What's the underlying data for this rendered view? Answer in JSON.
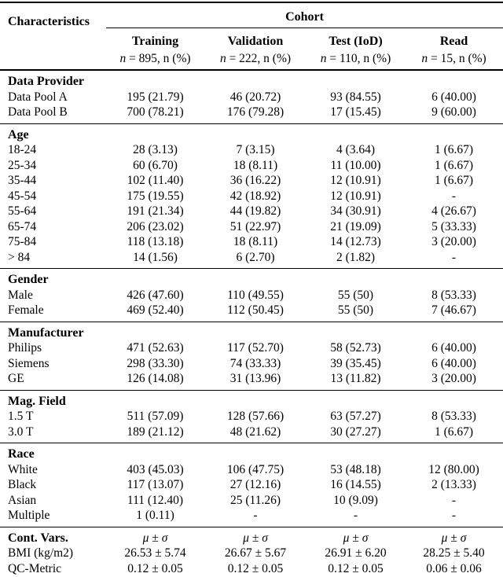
{
  "table": {
    "col1_header": "Characteristics",
    "cohort_header": "Cohort",
    "columns": [
      {
        "label": "Training",
        "n_prefix": "n",
        "n_rest": " = 895, n (%)"
      },
      {
        "label": "Validation",
        "n_prefix": "n",
        "n_rest": " = 222, n (%)"
      },
      {
        "label": "Test (IoD)",
        "n_prefix": "n",
        "n_rest": " = 110, n (%)"
      },
      {
        "label": "Read",
        "n_prefix": "n",
        "n_rest": " = 15, n (%)"
      }
    ],
    "sections": [
      {
        "title": "Data Provider",
        "rows": [
          {
            "label": "Data Pool A",
            "values": [
              "195 (21.79)",
              "46 (20.72)",
              "93 (84.55)",
              "6 (40.00)"
            ]
          },
          {
            "label": "Data Pool B",
            "values": [
              "700 (78.21)",
              "176 (79.28)",
              "17 (15.45)",
              "9 (60.00)"
            ]
          }
        ]
      },
      {
        "title": "Age",
        "rows": [
          {
            "label": "18-24",
            "values": [
              "28 (3.13)",
              "7 (3.15)",
              "4 (3.64)",
              "1 (6.67)"
            ]
          },
          {
            "label": "25-34",
            "values": [
              "60 (6.70)",
              "18 (8.11)",
              "11 (10.00)",
              "1 (6.67)"
            ]
          },
          {
            "label": "35-44",
            "values": [
              "102 (11.40)",
              "36 (16.22)",
              "12 (10.91)",
              "1 (6.67)"
            ]
          },
          {
            "label": "45-54",
            "values": [
              "175 (19.55)",
              "42 (18.92)",
              "12 (10.91)",
              "-"
            ]
          },
          {
            "label": "55-64",
            "values": [
              "191 (21.34)",
              "44 (19.82)",
              "34 (30.91)",
              "4 (26.67)"
            ]
          },
          {
            "label": "65-74",
            "values": [
              "206 (23.02)",
              "51 (22.97)",
              "21 (19.09)",
              "5 (33.33)"
            ]
          },
          {
            "label": "75-84",
            "values": [
              "118 (13.18)",
              "18 (8.11)",
              "14 (12.73)",
              "3 (20.00)"
            ]
          },
          {
            "label": "> 84",
            "values": [
              "14 (1.56)",
              "6 (2.70)",
              "2 (1.82)",
              "-"
            ]
          }
        ]
      },
      {
        "title": "Gender",
        "rows": [
          {
            "label": "Male",
            "values": [
              "426 (47.60)",
              "110 (49.55)",
              "55 (50)",
              "8 (53.33)"
            ]
          },
          {
            "label": "Female",
            "values": [
              "469 (52.40)",
              "112 (50.45)",
              "55 (50)",
              "7 (46.67)"
            ]
          }
        ]
      },
      {
        "title": "Manufacturer",
        "rows": [
          {
            "label": "Philips",
            "values": [
              "471 (52.63)",
              "117 (52.70)",
              "58 (52.73)",
              "6 (40.00)"
            ]
          },
          {
            "label": "Siemens",
            "values": [
              "298 (33.30)",
              "74 (33.33)",
              "39 (35.45)",
              "6 (40.00)"
            ]
          },
          {
            "label": "GE",
            "values": [
              "126 (14.08)",
              "31 (13.96)",
              "13 (11.82)",
              "3 (20.00)"
            ]
          }
        ]
      },
      {
        "title": "Mag. Field",
        "rows": [
          {
            "label": "1.5 T",
            "values": [
              "511 (57.09)",
              "128 (57.66)",
              "63 (57.27)",
              "8 (53.33)"
            ]
          },
          {
            "label": "3.0 T",
            "values": [
              "189 (21.12)",
              "48 (21.62)",
              "30 (27.27)",
              "1 (6.67)"
            ]
          }
        ]
      },
      {
        "title": "Race",
        "rows": [
          {
            "label": "White",
            "values": [
              "403 (45.03)",
              "106 (47.75)",
              "53 (48.18)",
              "12 (80.00)"
            ]
          },
          {
            "label": "Black",
            "values": [
              "117 (13.07)",
              "27 (12.16)",
              "16 (14.55)",
              "2 (13.33)"
            ]
          },
          {
            "label": "Asian",
            "values": [
              "111 (12.40)",
              "25 (11.26)",
              "10 (9.09)",
              "-"
            ]
          },
          {
            "label": "Multiple",
            "values": [
              "1 (0.11)",
              "-",
              "-",
              "-"
            ]
          }
        ]
      },
      {
        "title": "Cont. Vars.",
        "title_values": [
          "μ ± σ",
          "μ ± σ",
          "μ ± σ",
          "μ ± σ"
        ],
        "rows": [
          {
            "label": "BMI (kg/m2)",
            "values": [
              "26.53 ± 5.74",
              "26.67 ± 5.67",
              "26.91 ± 6.20",
              "28.25 ± 5.40"
            ]
          },
          {
            "label": "QC-Metric",
            "values": [
              "0.12 ± 0.05",
              "0.12 ± 0.05",
              "0.12 ± 0.05",
              "0.06 ± 0.06"
            ]
          }
        ]
      }
    ]
  }
}
